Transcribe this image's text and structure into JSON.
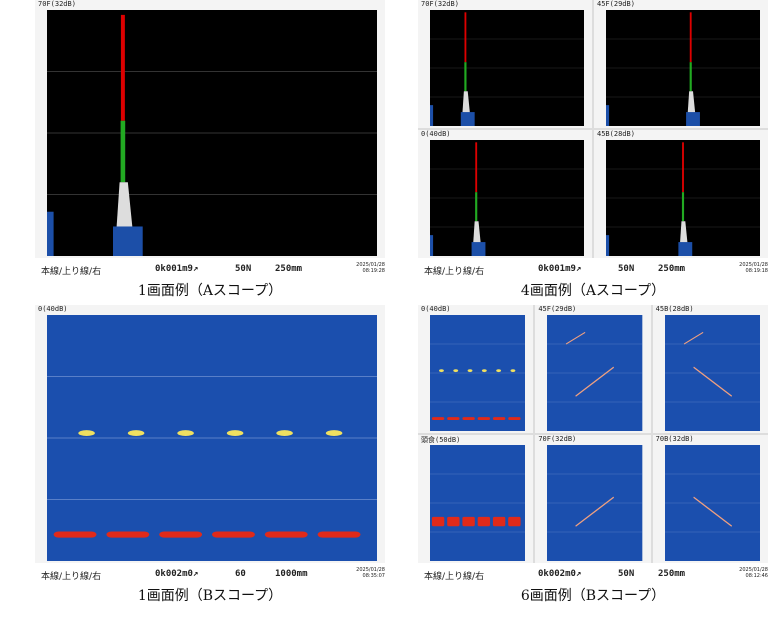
{
  "panels": [
    {
      "scope": "A",
      "columns": 1,
      "screens": [
        {
          "label": "70F(32dB)"
        }
      ],
      "status": {
        "line": "本線/上り線/右",
        "position": "0k001m9↗",
        "gain": "50N",
        "range": "250mm",
        "date": "2025/01/28",
        "time": "08:19:28"
      },
      "caption": "1画面例（Aスコープ）"
    },
    {
      "scope": "A",
      "columns": 2,
      "screens": [
        {
          "label": "70F(32dB)"
        },
        {
          "label": "45F(29dB)"
        },
        {
          "label": "0(40dB)"
        },
        {
          "label": "45B(28dB)"
        }
      ],
      "status": {
        "line": "本線/上り線/右",
        "position": "0k001m9↗",
        "gain": "50N",
        "range": "250mm",
        "date": "2025/01/28",
        "time": "08:19:18"
      },
      "caption": "4画面例（Aスコープ）"
    },
    {
      "scope": "B",
      "columns": 1,
      "screens": [
        {
          "label": "0(40dB)"
        }
      ],
      "status": {
        "line": "本線/上り線/右",
        "position": "0k002m0↗",
        "gain": "60",
        "range": "1000mm",
        "date": "2025/01/28",
        "time": "08:35:07"
      },
      "caption": "1画面例（Bスコープ）"
    },
    {
      "scope": "B",
      "columns": 3,
      "screens": [
        {
          "label": "0(40dB)"
        },
        {
          "label": "45F(29dB)"
        },
        {
          "label": "45B(28dB)"
        },
        {
          "label": "頭食(50dB)"
        },
        {
          "label": "70F(32dB)"
        },
        {
          "label": "70B(32dB)"
        }
      ],
      "status": {
        "line": "本線/上り線/右",
        "position": "0k002m0↗",
        "gain": "50N",
        "range": "250mm",
        "date": "2025/01/28",
        "time": "08:12:46"
      },
      "caption": "6画面例（Bスコープ）"
    }
  ]
}
